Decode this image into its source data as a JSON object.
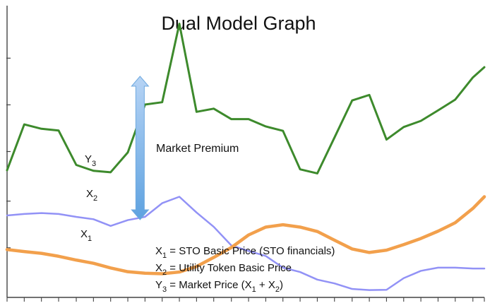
{
  "chart_data": {
    "type": "line",
    "title": "Dual Model Graph",
    "xlabel": "",
    "ylabel": "",
    "x": [
      0,
      0.036,
      0.072,
      0.108,
      0.145,
      0.181,
      0.217,
      0.253,
      0.289,
      0.325,
      0.361,
      0.397,
      0.433,
      0.47,
      0.506,
      0.542,
      0.578,
      0.614,
      0.65,
      0.686,
      0.723,
      0.759,
      0.795,
      0.831,
      0.867,
      0.903,
      0.939,
      0.976,
      1.0
    ],
    "xlim": [
      0,
      1
    ],
    "ylim": [
      0,
      1
    ],
    "grid": false,
    "series": [
      {
        "name": "Y3",
        "label_main": "Y",
        "label_sub": "3",
        "color": "#3d8a2c",
        "values": [
          0.436,
          0.593,
          0.578,
          0.572,
          0.454,
          0.434,
          0.429,
          0.497,
          0.661,
          0.669,
          0.938,
          0.636,
          0.647,
          0.611,
          0.611,
          0.586,
          0.571,
          0.439,
          0.425,
          0.548,
          0.675,
          0.694,
          0.541,
          0.584,
          0.605,
          0.641,
          0.678,
          0.754,
          0.789
        ]
      },
      {
        "name": "X2",
        "label_main": "X",
        "label_sub": "2",
        "color": "#9292f6",
        "values": [
          0.281,
          0.286,
          0.289,
          0.286,
          0.276,
          0.268,
          0.245,
          0.265,
          0.276,
          0.323,
          0.345,
          0.291,
          0.242,
          0.178,
          0.159,
          0.142,
          0.102,
          0.087,
          0.061,
          0.048,
          0.029,
          0.025,
          0.026,
          0.066,
          0.091,
          0.102,
          0.102,
          0.099,
          0.099
        ]
      },
      {
        "name": "X1",
        "label_main": "X",
        "label_sub": "1",
        "color": "#f2a04c",
        "values": [
          0.164,
          0.157,
          0.151,
          0.141,
          0.128,
          0.117,
          0.101,
          0.088,
          0.083,
          0.081,
          0.087,
          0.106,
          0.137,
          0.171,
          0.214,
          0.241,
          0.249,
          0.241,
          0.226,
          0.196,
          0.166,
          0.154,
          0.162,
          0.181,
          0.202,
          0.227,
          0.256,
          0.305,
          0.345
        ]
      }
    ],
    "annotations": {
      "market_premium": "Market Premium",
      "premium_from": 0.661,
      "premium_to": 0.276,
      "premium_at_x": 0.289
    },
    "legend": [
      {
        "label_main": "X",
        "label_sub": "1",
        "text": " = STO Basic Price (STO financials)"
      },
      {
        "label_main": "X",
        "label_sub": "2",
        "text": " =  Utility Token Basic Price"
      },
      {
        "label_main": "Y",
        "label_sub": "3",
        "text_before": " = Market Price (X",
        "sub_1": "1",
        "text_middle": " + X",
        "sub_2": "2",
        "text_after": ")"
      }
    ]
  }
}
